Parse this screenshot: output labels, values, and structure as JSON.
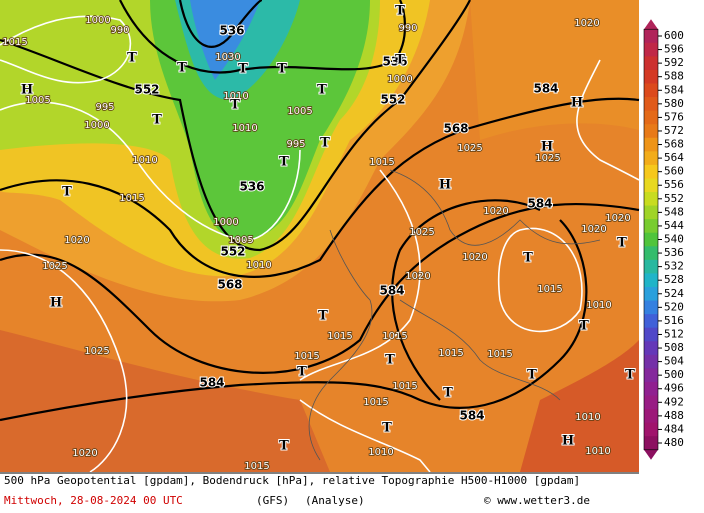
{
  "scale": {
    "labels": [
      600,
      596,
      592,
      588,
      584,
      580,
      576,
      572,
      568,
      564,
      560,
      556,
      552,
      548,
      544,
      540,
      536,
      532,
      528,
      524,
      520,
      516,
      512,
      508,
      504,
      500,
      496,
      492,
      488,
      484,
      480
    ],
    "colors": [
      "#b0245a",
      "#c02848",
      "#cc3030",
      "#d43a24",
      "#dc4a1c",
      "#e05a1a",
      "#e46a18",
      "#e87a18",
      "#ee9418",
      "#f2ac1a",
      "#f6c81c",
      "#e8d820",
      "#c8dc20",
      "#a0d428",
      "#78cc30",
      "#50c43c",
      "#34bc6c",
      "#28b8a0",
      "#20b4c8",
      "#2aa0dc",
      "#3480e0",
      "#4060d8",
      "#5048c8",
      "#6438b8",
      "#7430a8",
      "#84289c",
      "#902090",
      "#981c84",
      "#9c1878",
      "#a0146c",
      "#8c1060"
    ]
  },
  "map": {
    "contour_labels": [
      "536",
      "536",
      "552",
      "552",
      "568",
      "536",
      "552",
      "568",
      "584",
      "584",
      "584",
      "584",
      "584"
    ],
    "isobar_labels": [
      "1015",
      "1000",
      "990",
      "1000",
      "995",
      "1005",
      "1010",
      "1015",
      "1020",
      "1025",
      "1025",
      "1020",
      "1005",
      "1000",
      "1005",
      "1010",
      "1015",
      "1025",
      "1020",
      "1025",
      "1020",
      "1015",
      "1015",
      "1015",
      "1015",
      "1015",
      "1015",
      "1015",
      "1015",
      "1010",
      "1010",
      "1015",
      "1010",
      "1025",
      "1020",
      "1000",
      "990",
      "1030",
      "1010",
      "1010",
      "995",
      "1020",
      "1020",
      "1020",
      "1010"
    ],
    "pressure_centers": [
      "T",
      "T",
      "T",
      "T",
      "T",
      "T",
      "T",
      "T",
      "T",
      "T",
      "T",
      "H",
      "H",
      "H",
      "H",
      "T",
      "T",
      "T",
      "T",
      "T",
      "T",
      "T",
      "T",
      "T",
      "H",
      "T",
      "T",
      "H",
      "T"
    ]
  },
  "footer": {
    "description": "500 hPa Geopotential [gpdam], Bodendruck [hPa], relative Topographie H500-H1000 [gpdam]",
    "date": "Mittwoch, 28-08-2024  00 UTC",
    "model": "(GFS)",
    "analysis": "(Analyse)",
    "credit": "© www.wetter3.de"
  }
}
